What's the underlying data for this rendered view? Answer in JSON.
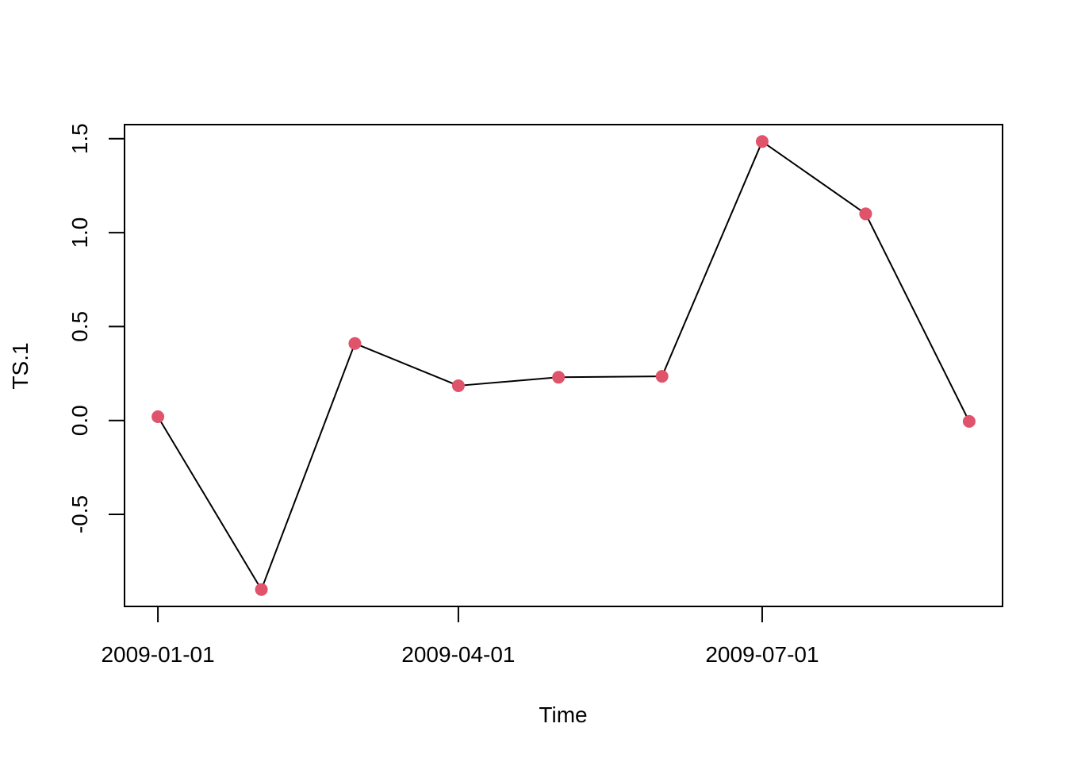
{
  "chart_data": {
    "type": "line",
    "title": "",
    "xlabel": "Time",
    "ylabel": "TS.1",
    "x": [
      "2009-01-01",
      "2009-02-01",
      "2009-03-01",
      "2009-04-01",
      "2009-05-01",
      "2009-06-01",
      "2009-07-01",
      "2009-08-01",
      "2009-09-01"
    ],
    "series": [
      {
        "values": [
          0.02,
          -0.9,
          0.41,
          0.185,
          0.23,
          0.235,
          1.485,
          1.1,
          -0.005
        ]
      }
    ],
    "xticks": [
      "2009-01-01",
      "2009-04-01",
      "2009-07-01"
    ],
    "yticks": [
      -0.5,
      0.0,
      0.5,
      1.0,
      1.5
    ],
    "ytick_labels": [
      "-0.5",
      "0.0",
      "0.5",
      "1.0",
      "1.5"
    ],
    "ylim": [
      -0.99,
      1.575
    ],
    "xlim": [
      "2008-12-22",
      "2009-09-11"
    ],
    "line_color": "#000000",
    "point_color": "#DF536B",
    "grid": false,
    "legend": "none"
  }
}
